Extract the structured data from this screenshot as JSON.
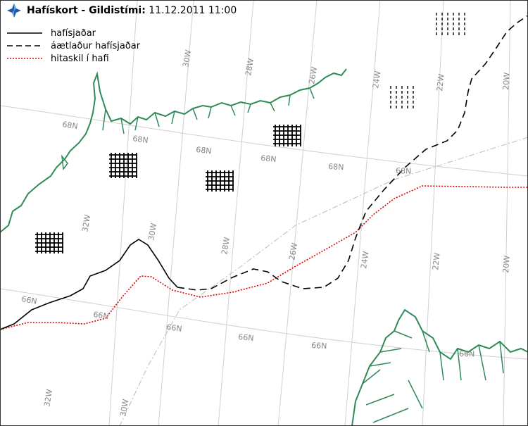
{
  "header": {
    "title": "Hafískort - Gildistími:",
    "datetime": "11.12.2011 11:00",
    "logo_icon": "imo-logo-icon"
  },
  "legend": {
    "items": [
      {
        "label": "hafísjaðar",
        "style": "solid",
        "color": "#000000"
      },
      {
        "label": "áætlaður hafísjaðar",
        "style": "dashed",
        "color": "#000000"
      },
      {
        "label": "hitaskil í hafi",
        "style": "dotted",
        "color": "#e00000"
      }
    ]
  },
  "grid_labels": {
    "lon_upper": [
      "30W",
      "28W",
      "26W",
      "24W",
      "22W",
      "20W"
    ],
    "lon_lower": [
      "32W",
      "30W",
      "28W",
      "26W",
      "24W",
      "22W",
      "20W"
    ],
    "lon_bottom": [
      "32W",
      "30W"
    ],
    "lat_68": [
      "68N",
      "68N",
      "68N",
      "68N",
      "68N"
    ],
    "lat_66": [
      "66N",
      "66N",
      "66N",
      "66N",
      "66N",
      "66N"
    ]
  },
  "colors": {
    "coast": "#2e8b57",
    "grid": "#cccccc",
    "ice_edge": "#000000",
    "front": "#e00000",
    "hatch": "#000000"
  }
}
